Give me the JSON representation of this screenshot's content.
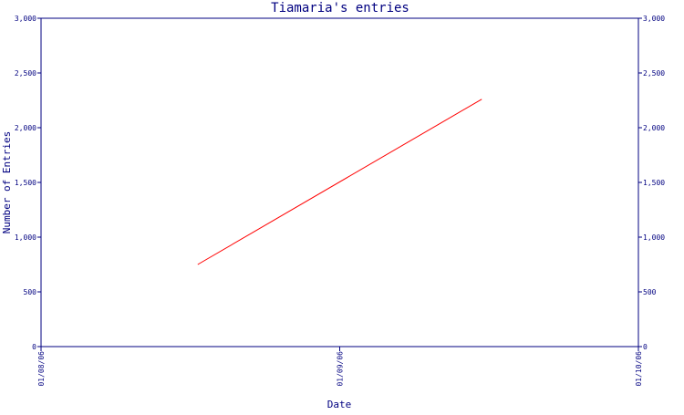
{
  "chart_data": {
    "type": "line",
    "title": "Tiamaria's entries",
    "xlabel": "Date",
    "ylabel": "Number of Entries",
    "x_ticks": [
      "01/08/06",
      "01/09/06",
      "01/10/06"
    ],
    "y_ticks": [
      "0",
      "500",
      "1,000",
      "1,500",
      "2,000",
      "2,500",
      "3,000"
    ],
    "ylim": [
      0,
      3000
    ],
    "grid": false,
    "series": [
      {
        "points": [
          {
            "x": "2006-08-17",
            "y": 750
          },
          {
            "x": "2006-09-15",
            "y": 2260
          }
        ]
      }
    ],
    "colors": {
      "axis": "#000080",
      "text": "#000080",
      "line": "#ff0000",
      "background": "#ffffff"
    }
  }
}
